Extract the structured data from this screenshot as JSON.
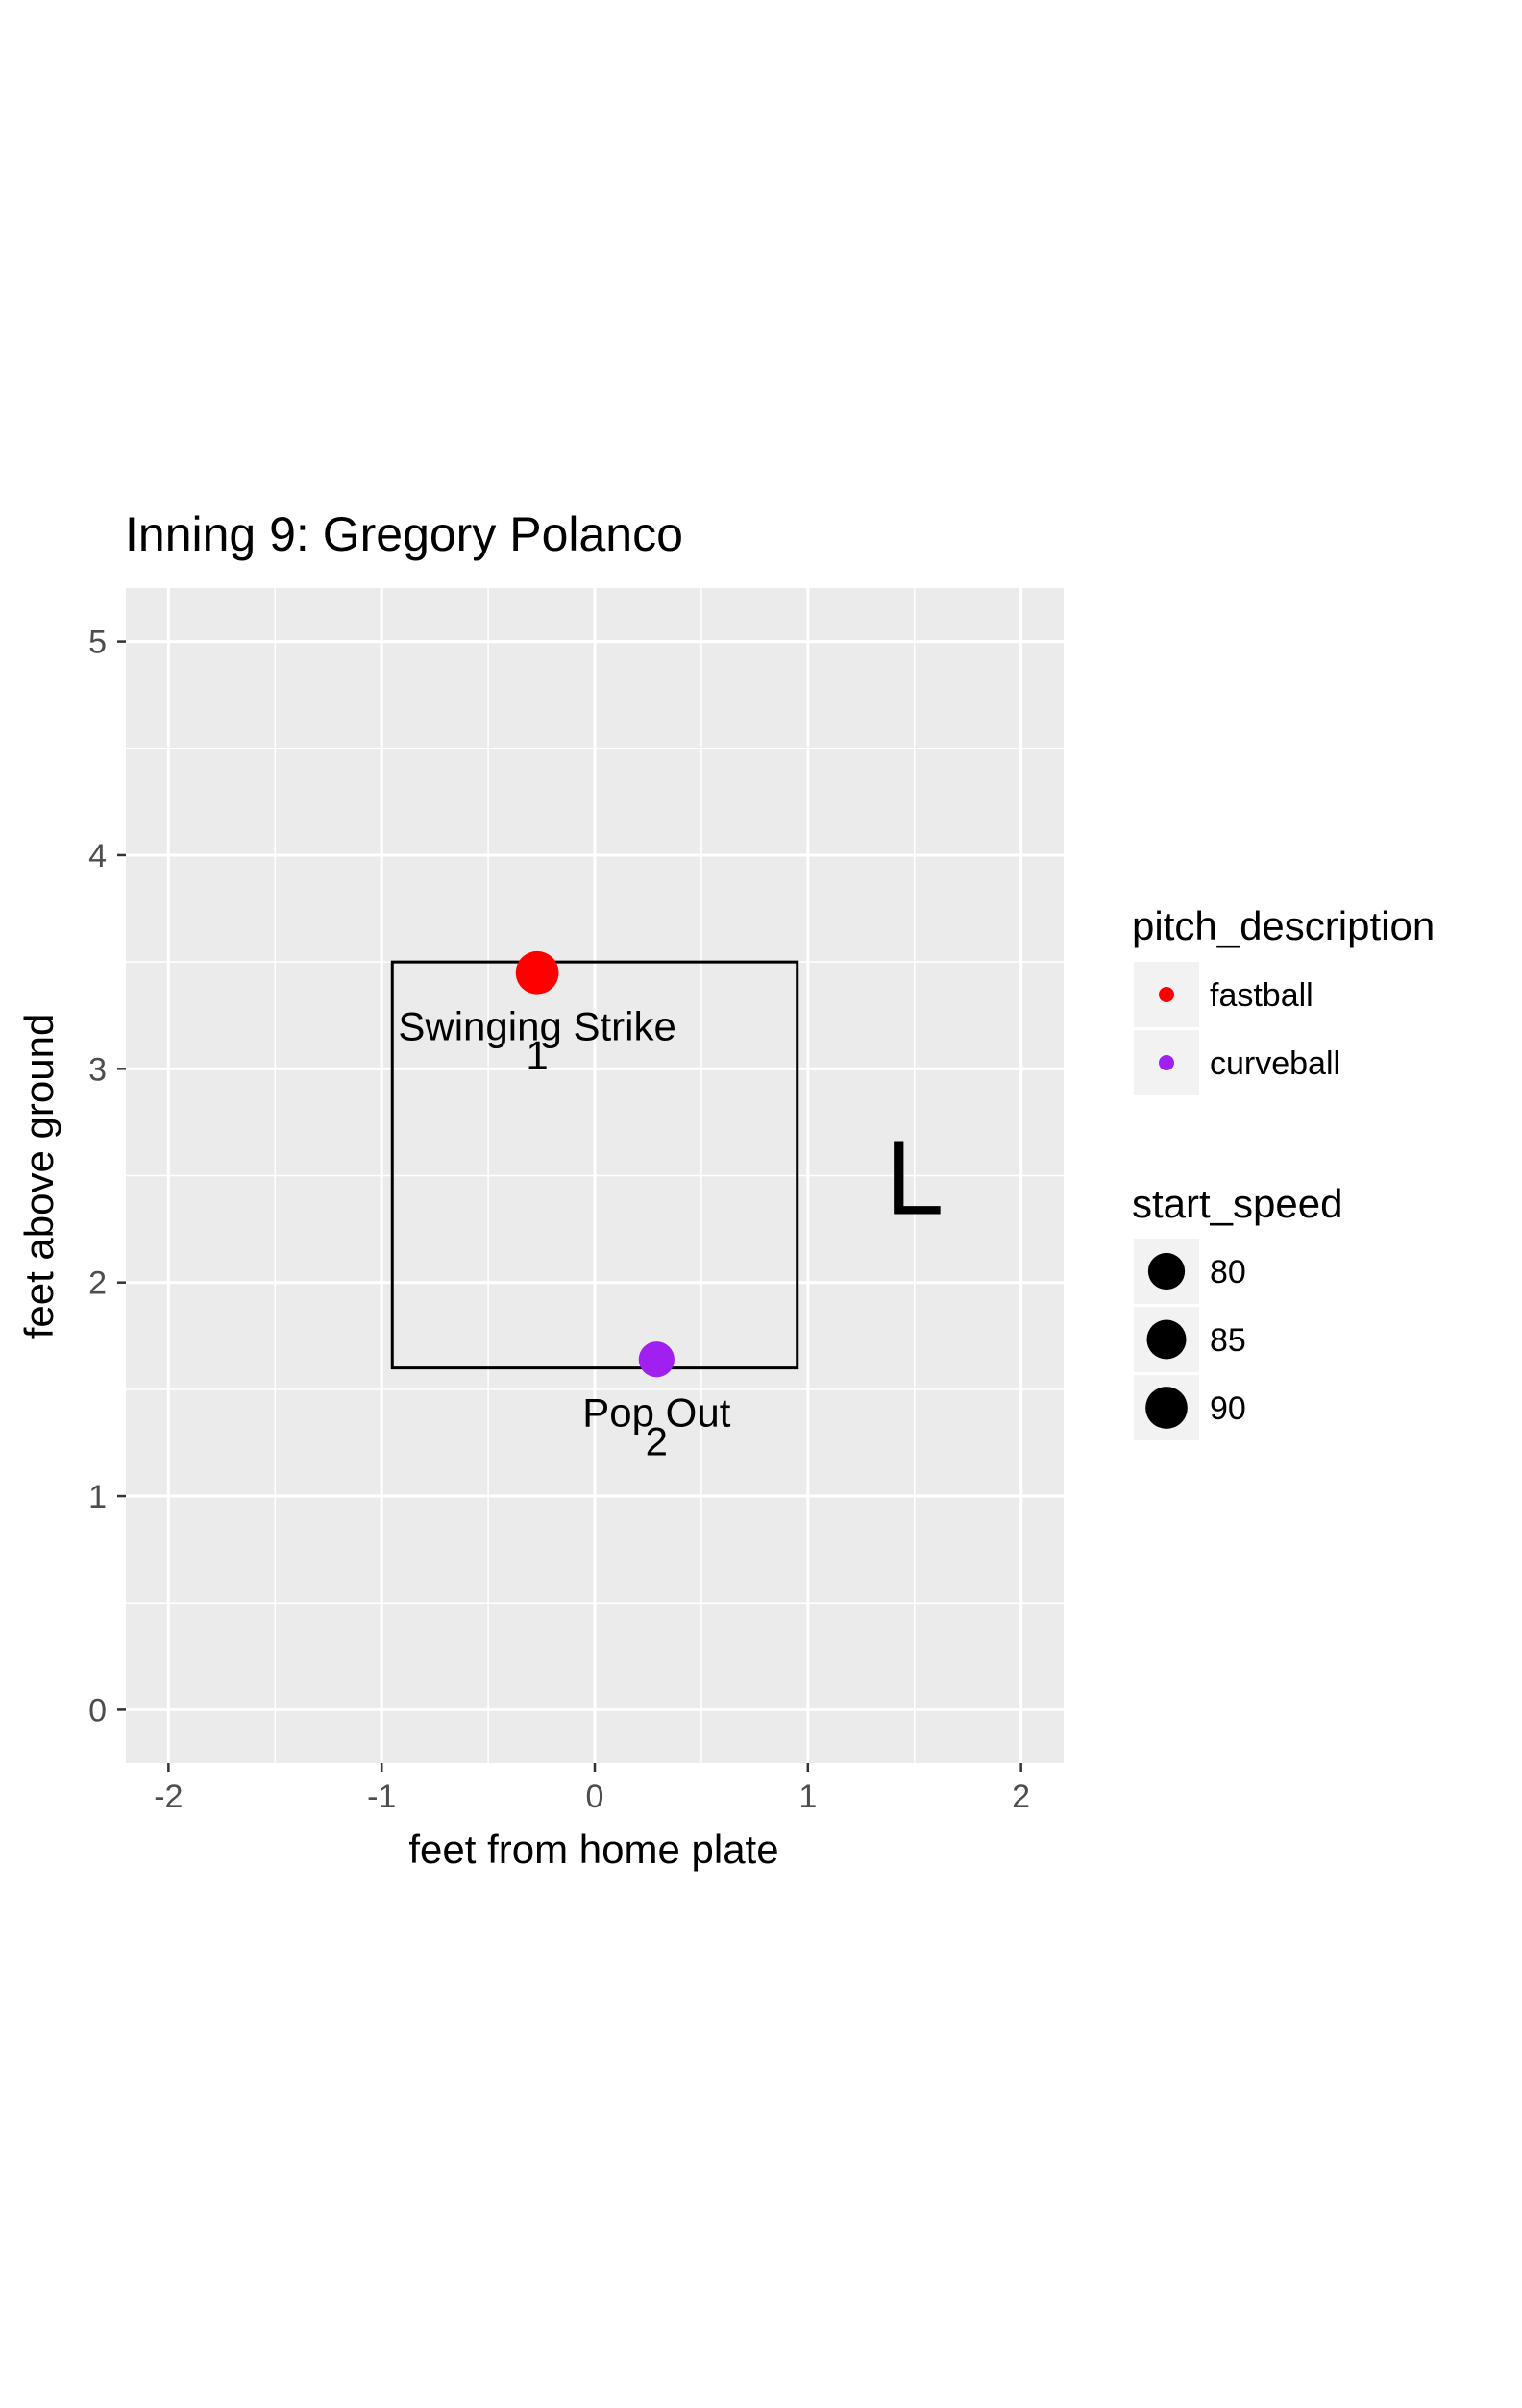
{
  "chart_data": {
    "type": "scatter",
    "title": "Inning 9: Gregory Polanco",
    "xlabel": "feet from home plate",
    "ylabel": "feet above ground",
    "xlim": [
      -2.2,
      2.2
    ],
    "ylim": [
      -0.25,
      5.25
    ],
    "x_ticks": [
      -2,
      -1,
      0,
      1,
      2
    ],
    "x_tick_labels": [
      "-2",
      "-1",
      "0",
      "1",
      "2"
    ],
    "y_ticks": [
      0,
      1,
      2,
      3,
      4,
      5
    ],
    "y_tick_labels": [
      "0",
      "1",
      "2",
      "3",
      "4",
      "5"
    ],
    "grid": true,
    "strike_zone": {
      "x": [
        -0.95,
        0.95
      ],
      "y": [
        1.6,
        3.5
      ]
    },
    "batter_side": "L",
    "points": [
      {
        "x": -0.27,
        "y": 3.45,
        "pitch_description": "fastball",
        "start_speed": 92,
        "label": "Swinging Strike",
        "number": "1",
        "color": "#ff0000"
      },
      {
        "x": 0.29,
        "y": 1.64,
        "pitch_description": "curveball",
        "start_speed": 78,
        "label": "Pop Out",
        "number": "2",
        "color": "#a020f0"
      }
    ],
    "legend_position": "right",
    "legend": {
      "color": {
        "title": "pitch_description",
        "entries": [
          {
            "label": "fastball",
            "color": "#ff0000"
          },
          {
            "label": "curveball",
            "color": "#a020f0"
          }
        ]
      },
      "size": {
        "title": "start_speed",
        "entries": [
          {
            "label": "80",
            "value": 80
          },
          {
            "label": "85",
            "value": 85
          },
          {
            "label": "90",
            "value": 90
          }
        ]
      }
    },
    "colors": {
      "panel": "#ebebeb",
      "grid": "#ffffff",
      "axis_text": "#4d4d4d",
      "text": "#000000",
      "key_bg": "#f2f2f2"
    }
  }
}
